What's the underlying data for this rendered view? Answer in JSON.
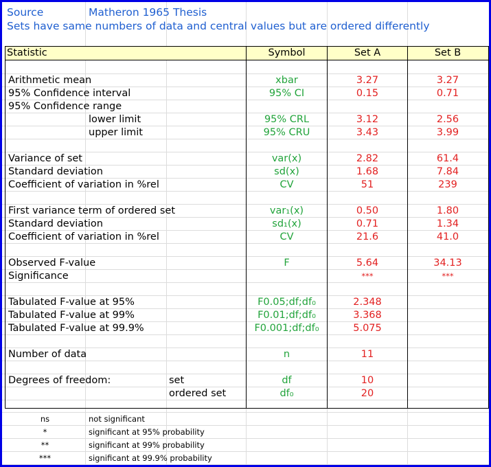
{
  "source_label": "Source",
  "source_value": "Matheron 1965 Thesis",
  "subtitle": "Sets have same numbers of data and central values but are ordered differently",
  "header": {
    "statistic": "Statistic",
    "symbol": "Symbol",
    "set_a": "Set A",
    "set_b": "Set B"
  },
  "rows": {
    "mean": {
      "label": "Arithmetic mean",
      "symbol": "xbar",
      "a": "3.27",
      "b": "3.27"
    },
    "ci": {
      "label": "95% Confidence interval",
      "symbol": "95% CI",
      "a": "0.15",
      "b": "0.71"
    },
    "cr": {
      "label": "95% Confidence range"
    },
    "lower": {
      "label": "lower limit",
      "symbol": "95% CRL",
      "a": "3.12",
      "b": "2.56"
    },
    "upper": {
      "label": "upper limit",
      "symbol": "95% CRU",
      "a": "3.43",
      "b": "3.99"
    },
    "var": {
      "label": "Variance of set",
      "symbol": "var(x)",
      "a": "2.82",
      "b": "61.4"
    },
    "sd": {
      "label": "Standard deviation",
      "symbol": "sd(x)",
      "a": "1.68",
      "b": "7.84"
    },
    "cv": {
      "label": "Coefficient of variation in %rel",
      "symbol": "CV",
      "a": "51",
      "b": "239"
    },
    "var1": {
      "label": "First variance term of ordered set",
      "symbol": "var₁(x)",
      "a": "0.50",
      "b": "1.80"
    },
    "sd1": {
      "label": "Standard deviation",
      "symbol": "sd₁(x)",
      "a": "0.71",
      "b": "1.34"
    },
    "cv1": {
      "label": "Coefficient of variation in %rel",
      "symbol": "CV",
      "a": "21.6",
      "b": "41.0"
    },
    "fobs": {
      "label": "Observed F-value",
      "symbol": "F",
      "a": "5.64",
      "b": "34.13"
    },
    "sig": {
      "label": "Significance",
      "a": "***",
      "b": "***"
    },
    "f95": {
      "label": "Tabulated F-value at 95%",
      "symbol": "F0.05;df;df₀",
      "a": "2.348"
    },
    "f99": {
      "label": "Tabulated F-value at 99%",
      "symbol": "F0.01;df;df₀",
      "a": "3.368"
    },
    "f999": {
      "label": "Tabulated F-value at 99.9%",
      "symbol": "F0.001;df;df₀",
      "a": "5.075"
    },
    "n": {
      "label": "Number of data",
      "symbol": "n",
      "a": "11"
    },
    "dof": {
      "label": "Degrees of freedom:",
      "sub": "set",
      "symbol": "df",
      "a": "10"
    },
    "dof2": {
      "sub": "ordered set",
      "symbol": "df₀",
      "a": "20"
    }
  },
  "legend": [
    {
      "code": "ns",
      "text": "not significant"
    },
    {
      "code": "*",
      "text": "significant at 95% probability"
    },
    {
      "code": "**",
      "text": "significant at 99% probability"
    },
    {
      "code": "***",
      "text": "significant at 99.9% probability"
    }
  ],
  "colors": {
    "frame": "#0000e6",
    "header_fill": "#ffffc8",
    "title": "#1f5fd0",
    "symbol": "#21a33a",
    "value": "#e22020"
  }
}
